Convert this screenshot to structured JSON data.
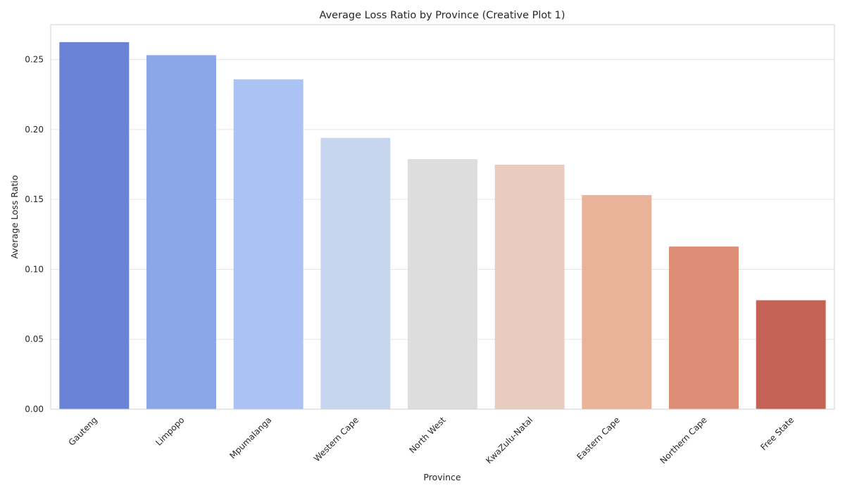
{
  "chart_data": {
    "type": "bar",
    "title": "Average Loss Ratio by Province (Creative Plot 1)",
    "xlabel": "Province",
    "ylabel": "Average Loss Ratio",
    "categories": [
      "Gauteng",
      "Limpopo",
      "Mpumalanga",
      "Western Cape",
      "North West",
      "KwaZulu-Natal",
      "Eastern Cape",
      "Northern Cape",
      "Free State"
    ],
    "values": [
      0.2625,
      0.2532,
      0.2359,
      0.194,
      0.1788,
      0.1749,
      0.1531,
      0.1163,
      0.0779
    ],
    "colors": [
      "#6A82D5",
      "#8AA6E9",
      "#AAC2F4",
      "#C7D5EF",
      "#DDDDDD",
      "#EACCBE",
      "#EBB29A",
      "#DE8D76",
      "#C46256"
    ],
    "ylim": [
      0,
      0.275
    ],
    "yticks": [
      0.0,
      0.05,
      0.1,
      0.15,
      0.2,
      0.25
    ],
    "ytick_labels": [
      "0.00",
      "0.05",
      "0.10",
      "0.15",
      "0.20",
      "0.25"
    ],
    "grid": true,
    "legend": "none"
  }
}
